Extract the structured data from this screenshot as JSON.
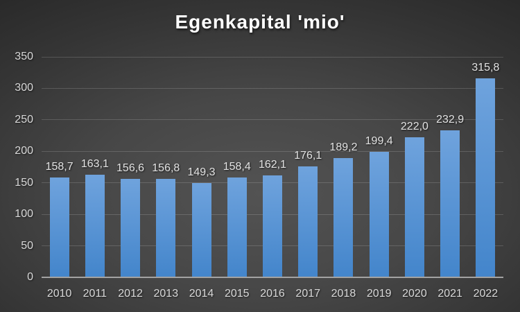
{
  "chart_data": {
    "type": "bar",
    "title": "Egenkapital 'mio'",
    "categories": [
      "2010",
      "2011",
      "2012",
      "2013",
      "2014",
      "2015",
      "2016",
      "2017",
      "2018",
      "2019",
      "2020",
      "2021",
      "2022"
    ],
    "values": [
      158.7,
      163.1,
      156.6,
      156.8,
      149.3,
      158.4,
      162.1,
      176.1,
      189.2,
      199.4,
      222.0,
      232.9,
      315.8
    ],
    "value_labels": [
      "158,7",
      "163,1",
      "156,6",
      "156,8",
      "149,3",
      "158,4",
      "162,1",
      "176,1",
      "189,2",
      "199,4",
      "222,0",
      "232,9",
      "315,8"
    ],
    "xlabel": "",
    "ylabel": "",
    "ylim": [
      0,
      350
    ],
    "yticks": [
      0,
      50,
      100,
      150,
      200,
      250,
      300,
      350
    ],
    "grid": true,
    "legend": "none",
    "decimal_separator": ",",
    "colors": {
      "bar_gradient_top": "#6fa3dd",
      "bar_gradient_bottom": "#4385cb",
      "background_center": "#535353",
      "background_edge": "#232323",
      "gridline": "rgba(255,255,255,0.16)",
      "axis_line": "#a3a3a3",
      "tick_label_text": "#d9d9d9",
      "value_label_text": "#e3e3e3",
      "title_text": "#ffffff"
    }
  }
}
